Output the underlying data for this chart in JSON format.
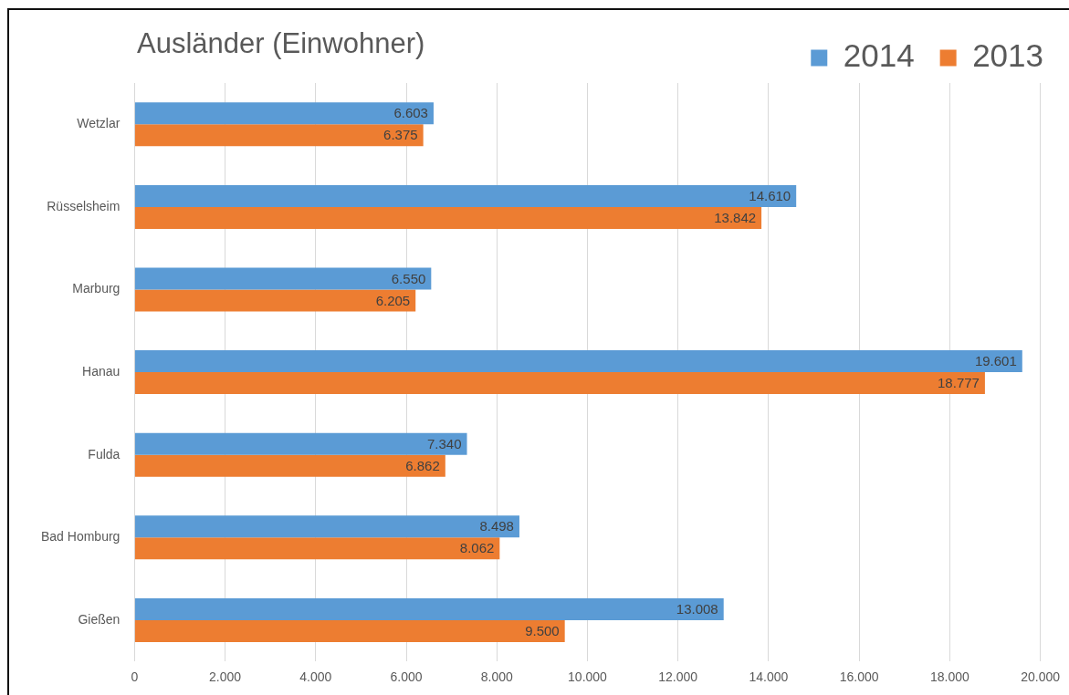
{
  "chart_data": {
    "type": "bar",
    "orientation": "horizontal",
    "title": "Ausländer (Einwohner)",
    "categories": [
      "Wetzlar",
      "Rüsselsheim",
      "Marburg",
      "Hanau",
      "Fulda",
      "Bad Homburg",
      "Gießen"
    ],
    "series": [
      {
        "name": "2014",
        "color": "#5b9bd5",
        "values": [
          6603,
          14610,
          6550,
          19601,
          7340,
          8498,
          13008
        ],
        "value_labels": [
          "6.603",
          "14.610",
          "6.550",
          "19.601",
          "7.340",
          "8.498",
          "13.008"
        ]
      },
      {
        "name": "2013",
        "color": "#ed7d31",
        "values": [
          6375,
          13842,
          6205,
          18777,
          6862,
          8062,
          9500
        ],
        "value_labels": [
          "6.375",
          "13.842",
          "6.205",
          "18.777",
          "6.862",
          "8.062",
          "9.500"
        ]
      }
    ],
    "xlim": [
      0,
      20000
    ],
    "xticks": [
      0,
      {
        "value": 2000,
        "label": "2.000"
      },
      {
        "value": 4000,
        "label": "4.000"
      },
      {
        "value": 6000,
        "label": "6.000"
      },
      {
        "value": 8000,
        "label": "8.000"
      },
      {
        "value": 10000,
        "label": "10.000"
      },
      {
        "value": 12000,
        "label": "12.000"
      },
      {
        "value": 14000,
        "label": "14.000"
      },
      {
        "value": 16000,
        "label": "16.000"
      },
      {
        "value": 18000,
        "label": "18.000"
      },
      {
        "value": 20000,
        "label": "20.000"
      }
    ],
    "grid": "x",
    "legend": "top right"
  }
}
